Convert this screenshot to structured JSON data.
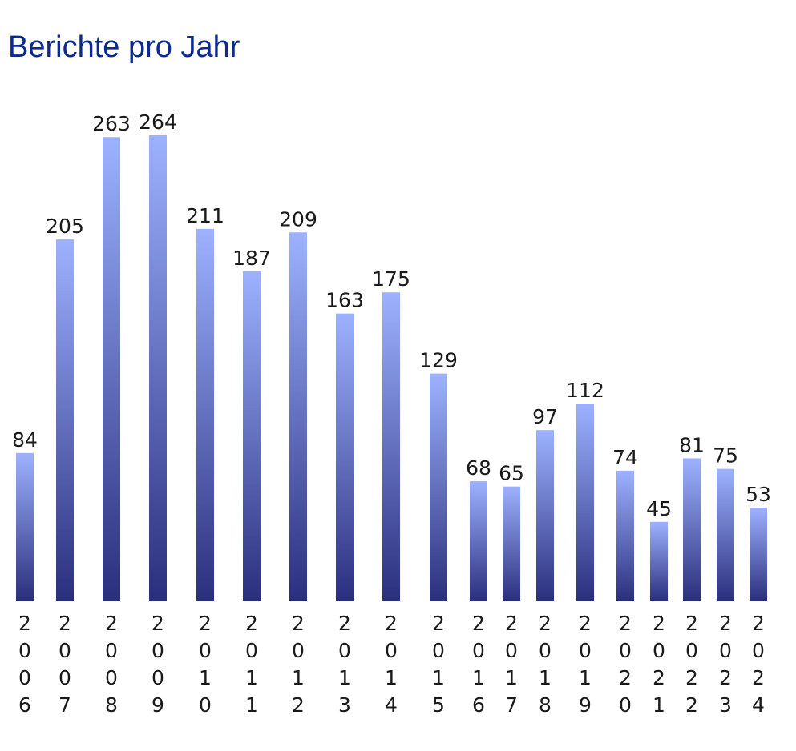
{
  "title": "Berichte pro Jahr",
  "colors": {
    "title": "#0b2a8c",
    "bar_top": "#9db2ff",
    "bar_bottom": "#2a2f7d",
    "text": "#1a1a1a"
  },
  "chart_data": {
    "type": "bar",
    "title": "Berichte pro Jahr",
    "xlabel": "",
    "ylabel": "",
    "categories": [
      "2006",
      "2007",
      "2008",
      "2009",
      "2010",
      "2011",
      "2012",
      "2013",
      "2014",
      "2015",
      "2016",
      "2017",
      "2018",
      "2019",
      "2020",
      "2021",
      "2022",
      "2023",
      "2024"
    ],
    "values": [
      84,
      205,
      263,
      264,
      211,
      187,
      209,
      163,
      175,
      129,
      68,
      65,
      97,
      112,
      74,
      45,
      81,
      75,
      53
    ],
    "ylim": [
      0,
      264
    ],
    "grid": false,
    "legend": "none",
    "data_labels": true,
    "tick_labels_vertical": true
  }
}
